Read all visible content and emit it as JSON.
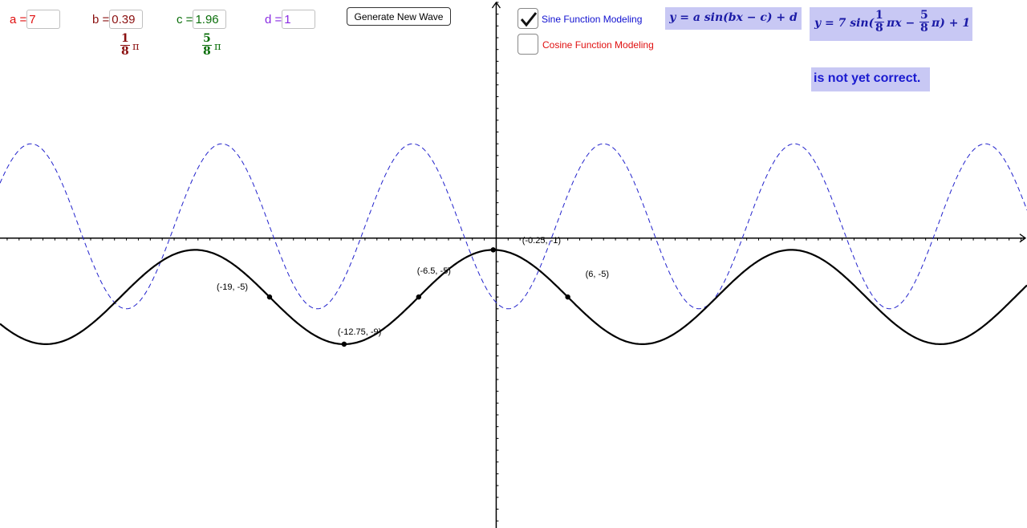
{
  "params": {
    "a": {
      "label": "a =",
      "value": "7",
      "color": "#e01010"
    },
    "b": {
      "label": "b =",
      "value": "0.39",
      "color": "#8b1010",
      "frac_num": "1",
      "frac_den": "8",
      "pi": "π"
    },
    "c": {
      "label": "c =",
      "value": "1.96",
      "color": "#0a6e0a",
      "frac_num": "5",
      "frac_den": "8",
      "pi": "π"
    },
    "d": {
      "label": "d =",
      "value": "1",
      "color": "#8a2be2"
    }
  },
  "buttons": {
    "generate": "Generate New Wave"
  },
  "checkboxes": {
    "sine": {
      "label": "Sine Function Modeling",
      "checked": true,
      "color": "#1010d0"
    },
    "cosine": {
      "label": "Cosine Function Modeling",
      "checked": false,
      "color": "#e01010"
    }
  },
  "formula_general": "y = a sin(bx − c) + d",
  "formula_specific": {
    "prefix": "y = 7 sin(",
    "f1_num": "1",
    "f1_den": "8",
    "mid": "πx −",
    "f2_num": "5",
    "f2_den": "8",
    "suffix": "π) + 1"
  },
  "status": "is not yet correct.",
  "point_labels": [
    {
      "text": "(-19, -5)",
      "x": -19,
      "y": -5
    },
    {
      "text": "(-12.75, -9)",
      "x": -12.75,
      "y": -9
    },
    {
      "text": "(-6.5, -5)",
      "x": -6.5,
      "y": -5
    },
    {
      "text": "(-0.25, -1)",
      "x": -0.25,
      "y": -1
    },
    {
      "text": "(6, -5)",
      "x": 6,
      "y": -5
    }
  ],
  "chart_data": {
    "type": "line",
    "xlim": [
      -41.6,
      44.5
    ],
    "ylim": [
      -24.6,
      20.2
    ],
    "series": [
      {
        "style": "solid",
        "color": "#000000",
        "amplitude": 4,
        "period": 25,
        "midline": -5,
        "max_x": -25.25,
        "note": "target wave"
      },
      {
        "style": "dashed",
        "color": "#2222cc",
        "amplitude": 7,
        "period": 16,
        "phase_shift": 5,
        "midline": 1
      }
    ],
    "points": [
      [
        -19,
        -5
      ],
      [
        -12.75,
        -9
      ],
      [
        -6.5,
        -5
      ],
      [
        -0.25,
        -1
      ],
      [
        6,
        -5
      ]
    ]
  }
}
